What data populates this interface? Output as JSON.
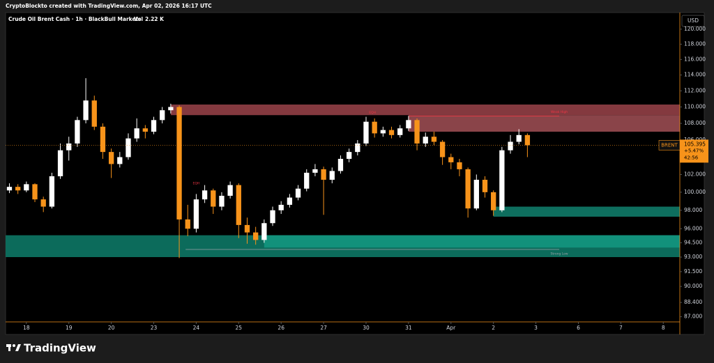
{
  "chart_data": {
    "type": "candlestick",
    "credit": "CryptoBlockto created with TradingView.com, Apr 02, 2026 16:17 UTC",
    "title": "Crude Oil Brent Cash · 1h · BlackBull Markets",
    "volume_label": "Vol",
    "volume": {
      "value": 2220,
      "label": "2.22 K"
    },
    "currency": "USD",
    "symbol": "BRENT",
    "last_price": 105.395,
    "change_pct": {
      "value": 5.47,
      "label": "+5.47%"
    },
    "countdown": "42:56",
    "brand": "TradingView",
    "log_scale": true,
    "up_color": "#ffffff",
    "down_color": "#f7931a",
    "ylim": [
      86.5,
      122.25
    ],
    "yticks": [
      {
        "value": 120,
        "label": "120.000"
      },
      {
        "value": 118,
        "label": "118.000"
      },
      {
        "value": 116,
        "label": "116.000"
      },
      {
        "value": 114,
        "label": "114.000"
      },
      {
        "value": 112,
        "label": "112.000"
      },
      {
        "value": 110,
        "label": "110.000"
      },
      {
        "value": 108,
        "label": "108.000"
      },
      {
        "value": 106,
        "label": "106.000"
      },
      {
        "value": 104,
        "label": "104.000"
      },
      {
        "value": 102,
        "label": "102.000"
      },
      {
        "value": 100,
        "label": "100.000"
      },
      {
        "value": 98,
        "label": "98.000"
      },
      {
        "value": 96,
        "label": "96.000"
      },
      {
        "value": 94.5,
        "label": "94.500"
      },
      {
        "value": 93,
        "label": "93.000"
      },
      {
        "value": 91.5,
        "label": "91.500"
      },
      {
        "value": 90,
        "label": "90.000"
      },
      {
        "value": 88.4,
        "label": "88.400"
      },
      {
        "value": 87,
        "label": "87.000"
      }
    ],
    "xlim": [
      -0.49,
      15.39
    ],
    "xticks": [
      {
        "value": 0,
        "label": "18"
      },
      {
        "value": 1,
        "label": "19"
      },
      {
        "value": 2,
        "label": "20"
      },
      {
        "value": 3,
        "label": "23"
      },
      {
        "value": 4,
        "label": "24"
      },
      {
        "value": 5,
        "label": "25"
      },
      {
        "value": 6,
        "label": "26"
      },
      {
        "value": 7,
        "label": "27"
      },
      {
        "value": 8,
        "label": "30"
      },
      {
        "value": 9,
        "label": "31"
      },
      {
        "value": 10,
        "label": "Apr"
      },
      {
        "value": 11,
        "label": "2"
      },
      {
        "value": 12,
        "label": "3"
      },
      {
        "value": 13,
        "label": "6"
      },
      {
        "value": 14,
        "label": "7"
      },
      {
        "value": 15,
        "label": "8"
      }
    ],
    "x": [
      -0.4,
      -0.2,
      0,
      0.2,
      0.4,
      0.6,
      0.8,
      1,
      1.2,
      1.4,
      1.6,
      1.8,
      2,
      2.2,
      2.4,
      2.6,
      2.8,
      3,
      3.2,
      3.4,
      3.6,
      3.8,
      4,
      4.2,
      4.4,
      4.6,
      4.8,
      5,
      5.2,
      5.4,
      5.6,
      5.8,
      6,
      6.2,
      6.4,
      6.6,
      6.8,
      7,
      7.2,
      7.4,
      7.6,
      7.8,
      8,
      8.2,
      8.4,
      8.6,
      8.8,
      9,
      9.2,
      9.4,
      9.6,
      9.8,
      10,
      10.2,
      10.4,
      10.6,
      10.8,
      11,
      11.2,
      11.4,
      11.6,
      11.8
    ],
    "open": [
      100.2,
      100.6,
      100.2,
      100.9,
      99.2,
      98.4,
      101.8,
      104.8,
      105.6,
      108.4,
      110.8,
      107.6,
      104.6,
      103.2,
      104.0,
      106.2,
      107.4,
      107.0,
      108.4,
      109.6,
      110.0,
      97.0,
      96.0,
      99.2,
      100.2,
      98.4,
      99.6,
      100.8,
      96.4,
      95.6,
      94.8,
      96.6,
      98.0,
      98.6,
      99.4,
      100.4,
      102.2,
      102.6,
      101.4,
      102.4,
      103.8,
      104.6,
      105.6,
      108.2,
      106.8,
      107.2,
      106.6,
      107.4,
      108.4,
      105.6,
      106.4,
      105.8,
      104.0,
      103.4,
      102.6,
      98.2,
      101.4,
      100.0,
      98.0,
      104.8,
      105.8,
      106.6
    ],
    "high": [
      101.0,
      100.9,
      101.2,
      101.0,
      99.5,
      102.2,
      105.6,
      106.4,
      108.8,
      113.6,
      111.4,
      108.0,
      105.0,
      104.6,
      106.8,
      108.6,
      107.8,
      108.8,
      110.0,
      110.4,
      110.2,
      98.6,
      99.8,
      100.8,
      100.4,
      100.0,
      101.2,
      101.0,
      97.2,
      96.2,
      97.0,
      98.4,
      99.0,
      99.8,
      100.8,
      102.6,
      103.2,
      102.9,
      102.8,
      104.2,
      105.0,
      106.0,
      108.8,
      108.6,
      107.6,
      107.6,
      107.8,
      108.9,
      108.6,
      106.9,
      107.0,
      106.0,
      104.4,
      103.8,
      102.8,
      102.0,
      101.8,
      100.2,
      105.2,
      106.6,
      107.3,
      106.8
    ],
    "low": [
      99.9,
      99.8,
      100.0,
      98.9,
      97.8,
      98.2,
      101.5,
      103.6,
      105.2,
      108.0,
      107.2,
      103.8,
      101.6,
      102.8,
      103.7,
      105.8,
      106.2,
      106.7,
      108.0,
      109.2,
      92.9,
      95.2,
      95.6,
      98.8,
      97.6,
      98.0,
      99.3,
      95.0,
      94.4,
      94.3,
      94.5,
      96.3,
      97.6,
      98.3,
      99.1,
      100.1,
      101.8,
      97.5,
      101.0,
      102.1,
      103.4,
      104.2,
      105.3,
      106.3,
      106.4,
      106.2,
      106.3,
      107.1,
      104.8,
      105.2,
      105.4,
      103.1,
      102.6,
      101.8,
      97.2,
      98.0,
      99.4,
      97.4,
      97.8,
      104.4,
      105.5,
      104.0
    ],
    "close": [
      100.6,
      100.2,
      100.9,
      99.2,
      98.4,
      101.8,
      104.8,
      105.6,
      108.4,
      110.8,
      107.6,
      104.6,
      103.2,
      104.0,
      106.2,
      107.4,
      107.0,
      108.4,
      109.6,
      110.0,
      97.0,
      96.0,
      99.2,
      100.2,
      98.4,
      99.6,
      100.8,
      96.4,
      95.6,
      94.8,
      96.6,
      98.0,
      98.6,
      99.4,
      100.4,
      102.2,
      102.6,
      101.4,
      102.4,
      103.8,
      104.6,
      105.6,
      108.2,
      106.8,
      107.2,
      106.6,
      107.4,
      108.4,
      105.6,
      106.4,
      105.8,
      104.0,
      103.4,
      102.6,
      98.2,
      101.4,
      100.0,
      98.0,
      104.8,
      105.8,
      106.6,
      105.395
    ],
    "zones": [
      {
        "top": 110.3,
        "bottom": 109.0,
        "x_start": 3.4,
        "color": "#84393f"
      },
      {
        "top": 109.0,
        "bottom": 107.0,
        "x_start": 9.0,
        "color": "#8a4449"
      },
      {
        "top": 98.4,
        "bottom": 97.3,
        "x_start": 11.0,
        "color": "#0e6e5e"
      },
      {
        "top": 95.3,
        "bottom": 93.0,
        "x_start": -0.49,
        "color": "#0c6b5b"
      },
      {
        "top": 95.3,
        "bottom": 94.0,
        "x_start": 5.6,
        "color": "#12917b"
      }
    ],
    "levels": [
      {
        "label": "Weak High",
        "price": 108.9,
        "x_start": 9.0,
        "x_end": 12.55,
        "color": "#f23645"
      },
      {
        "label": "Strong Low",
        "price": 93.8,
        "x_start": 3.75,
        "x_end": 12.55,
        "color": "#9aa0a6"
      }
    ],
    "annotations": [
      {
        "text": "EQH",
        "x": 8.15,
        "price": 109.3,
        "color": "#f23645"
      },
      {
        "text": "EQH",
        "x": 4.0,
        "price": 101.0,
        "color": "#f23645"
      }
    ]
  }
}
